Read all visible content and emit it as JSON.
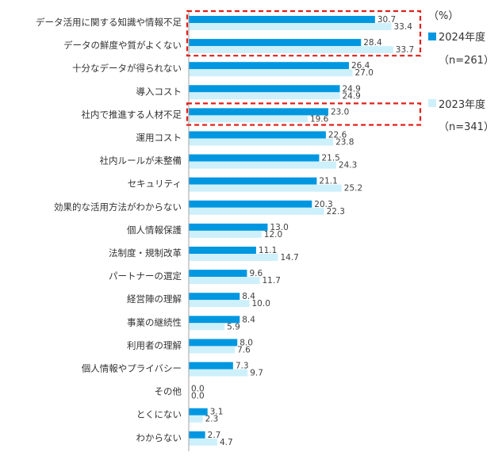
{
  "chart_data": {
    "type": "bar",
    "orientation": "horizontal",
    "unit": "（%）",
    "categories": [
      "データ活用に関する知識や情報不足",
      "データの鮮度や質がよくない",
      "十分なデータが得られない",
      "導入コスト",
      "社内で推進する人材不足",
      "運用コスト",
      "社内ルールが未整備",
      "セキュリティ",
      "効果的な活用方法がわからない",
      "個人情報保護",
      "法制度・規制改革",
      "パートナーの選定",
      "経営陣の理解",
      "事業の継続性",
      "利用者の理解",
      "個人情報やプライバシー",
      "その他",
      "とくにない",
      "わからない"
    ],
    "series": [
      {
        "name": "2024年度",
        "n_label": "（n=261）",
        "color": "#0097e0",
        "values": [
          30.7,
          28.4,
          26.4,
          24.9,
          23.0,
          22.6,
          21.5,
          21.1,
          20.3,
          13.0,
          11.1,
          9.6,
          8.4,
          8.4,
          8.0,
          7.3,
          0.0,
          3.1,
          2.7
        ],
        "value_labels": [
          "30.7",
          "28.4",
          "26.4",
          "24.9",
          "23.0",
          "22.6",
          "21.5",
          "21.1",
          "20.3",
          "13.0",
          "11.1",
          "9.6",
          "8.4",
          "8.4",
          "8.0",
          "7.3",
          "0.0",
          "3.1",
          "2.7"
        ]
      },
      {
        "name": "2023年度",
        "n_label": "（n=341）",
        "color": "#cdf0fb",
        "values": [
          33.4,
          33.7,
          27.0,
          24.9,
          19.6,
          23.8,
          24.3,
          25.2,
          22.3,
          12.0,
          14.7,
          11.7,
          10.0,
          5.9,
          7.6,
          9.7,
          0.0,
          2.3,
          4.7
        ],
        "value_labels": [
          "33.4",
          "33.7",
          "27.0",
          "24.9",
          "19.6",
          "23.8",
          "24.3",
          "25.2",
          "22.3",
          "12.0",
          "14.7",
          "11.7",
          "10.0",
          "5.9",
          "7.6",
          "9.7",
          "0.0",
          "2.3",
          "4.7"
        ]
      }
    ],
    "highlighted_categories": [
      "データ活用に関する知識や情報不足",
      "データの鮮度や質がよくない",
      "社内で推進する人材不足"
    ],
    "highlight_color": "#e0201b",
    "legend_position": "right",
    "xlim": [
      0,
      40
    ],
    "grid": false
  }
}
